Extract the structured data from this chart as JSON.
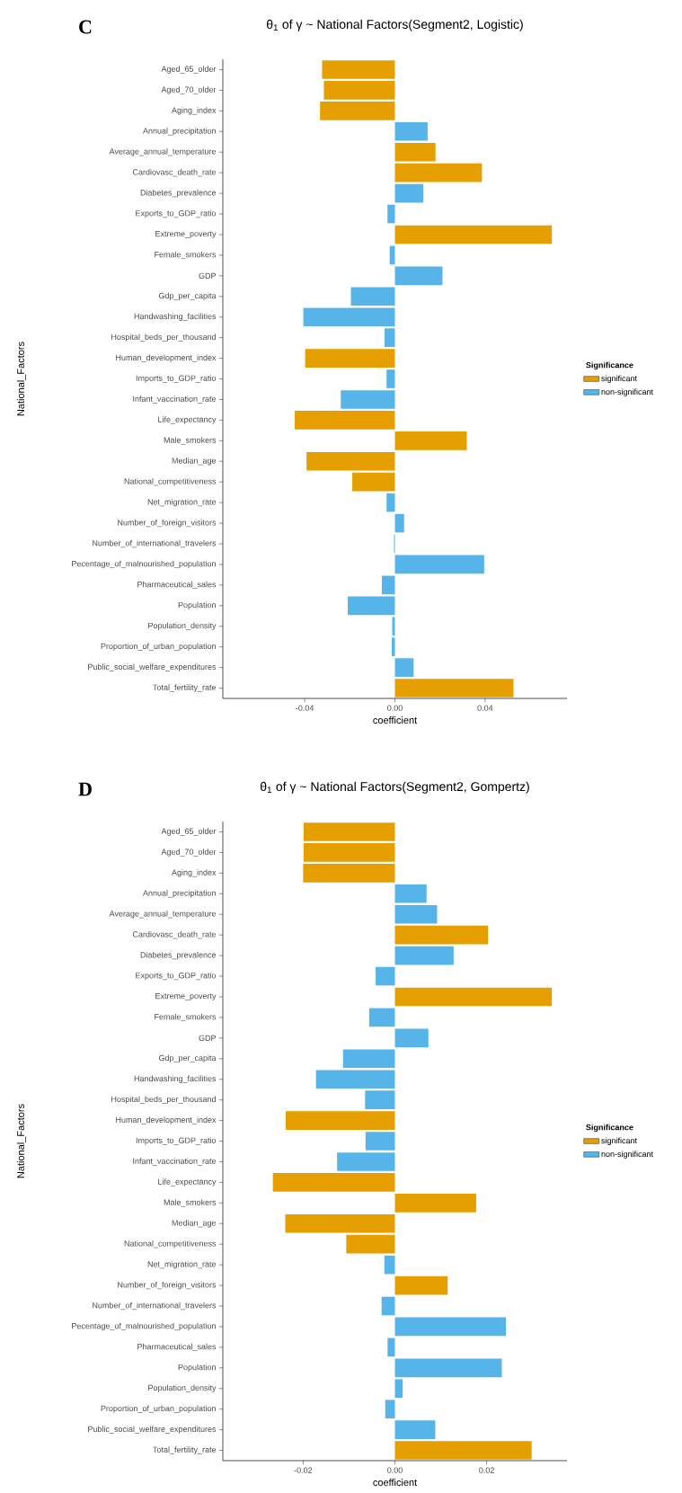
{
  "chart_data": [
    {
      "type": "bar",
      "orientation": "horizontal",
      "title": "θ$_{1}$ of γ ~ National Factors(Segment2, Logistic)",
      "xlabel": "coefficient",
      "ylabel": "National_Factors",
      "legend_title": "Significance",
      "legend": "right",
      "annotations": [
        "C"
      ],
      "categories": [
        "Aged_65_older",
        "Aged_70_older",
        "Aging_index",
        "Annual_precipitation",
        "Average_annual_temperature",
        "Cardiovasc_death_rate",
        "Diabetes_prevalence",
        "Exports_to_GDP_ratio",
        "Extreme_poverty",
        "Female_smokers",
        "GDP",
        "Gdp_per_capita",
        "Handwashing_facilities",
        "Hospital_beds_per_thousand",
        "Human_development_index",
        "Imports_to_GDP_ratio",
        "Infant_vaccination_rate",
        "Life_expectancy",
        "Male_smokers",
        "Median_age",
        "National_competitiveness",
        "Net_migration_rate",
        "Number_of_foreign_visitors",
        "Number_of_international_travelers",
        "Pecentage_of_malnourished_population",
        "Pharmaceutical_sales",
        "Population",
        "Population_density",
        "Proportion_of_urban_population",
        "Public_social_welfare_expenditures",
        "Total_fertility_rate"
      ],
      "xlim": [
        -0.0763,
        0.0763
      ],
      "xticks": [
        -0.04,
        {
          "value": 0,
          "label": "0.00"
        },
        0.04
      ],
      "series": [
        {
          "name": "significant",
          "color": "#e69f00",
          "values": [
            -0.0323,
            -0.0315,
            -0.0332,
            null,
            0.018,
            0.0386,
            null,
            null,
            0.0696,
            null,
            null,
            null,
            null,
            null,
            -0.0398,
            null,
            null,
            -0.0444,
            0.0319,
            -0.0392,
            -0.0189,
            null,
            null,
            null,
            null,
            null,
            null,
            null,
            null,
            null,
            0.0526
          ]
        },
        {
          "name": "non-significant",
          "color": "#56b4e9",
          "values": [
            null,
            null,
            null,
            0.0145,
            null,
            null,
            0.0126,
            -0.0033,
            null,
            -0.0023,
            0.0211,
            -0.0195,
            -0.0406,
            -0.0046,
            null,
            -0.0037,
            -0.024,
            null,
            null,
            null,
            null,
            -0.0037,
            0.0041,
            -0.0004,
            0.0396,
            -0.0058,
            -0.0209,
            -0.0012,
            -0.0014,
            0.0083,
            null
          ]
        }
      ]
    },
    {
      "type": "bar",
      "orientation": "horizontal",
      "title": "θ$_{1}$ of γ ~ National Factors(Segment2, Gompertz)",
      "xlabel": "coefficient",
      "ylabel": "National_Factors",
      "legend_title": "Significance",
      "legend": "right",
      "annotations": [
        "D"
      ],
      "categories": [
        "Aged_65_older",
        "Aged_70_older",
        "Aging_index",
        "Annual_precipitation",
        "Average_annual_temperature",
        "Cardiovasc_death_rate",
        "Diabetes_prevalence",
        "Exports_to_GDP_ratio",
        "Extreme_poverty",
        "Female_smokers",
        "GDP",
        "Gdp_per_capita",
        "Handwashing_facilities",
        "Hospital_beds_per_thousand",
        "Human_development_index",
        "Imports_to_GDP_ratio",
        "Infant_vaccination_rate",
        "Life_expectancy",
        "Male_smokers",
        "Median_age",
        "National_competitiveness",
        "Net_migration_rate",
        "Number_of_foreign_visitors",
        "Number_of_international_travelers",
        "Pecentage_of_malnourished_population",
        "Pharmaceutical_sales",
        "Population",
        "Population_density",
        "Proportion_of_urban_population",
        "Public_social_welfare_expenditures",
        "Total_fertility_rate"
      ],
      "xlim": [
        -0.0375,
        0.0375
      ],
      "xticks": [
        -0.02,
        {
          "value": 0,
          "label": "0.00"
        },
        0.02
      ],
      "series": [
        {
          "name": "significant",
          "color": "#e69f00",
          "values": [
            -0.0199,
            -0.0199,
            -0.02,
            null,
            null,
            0.0203,
            null,
            null,
            0.0342,
            null,
            null,
            null,
            null,
            null,
            -0.0238,
            null,
            null,
            -0.0266,
            0.0177,
            -0.0239,
            -0.0106,
            null,
            0.0115,
            null,
            null,
            null,
            null,
            null,
            null,
            null,
            0.0298
          ]
        },
        {
          "name": "non-significant",
          "color": "#56b4e9",
          "values": [
            null,
            null,
            null,
            0.0069,
            0.0092,
            null,
            0.0128,
            -0.0042,
            null,
            -0.0056,
            0.0073,
            -0.0113,
            -0.0172,
            -0.0065,
            null,
            -0.0064,
            -0.0126,
            null,
            null,
            null,
            null,
            -0.0023,
            null,
            -0.0029,
            0.0242,
            -0.0016,
            0.0233,
            0.0017,
            -0.0021,
            0.0088,
            null
          ]
        }
      ]
    }
  ]
}
